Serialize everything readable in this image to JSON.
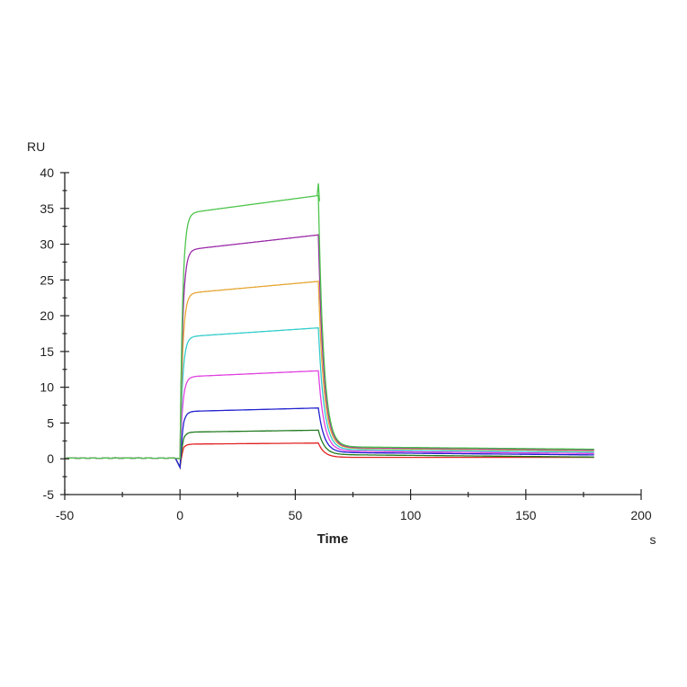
{
  "chart_data": {
    "type": "line",
    "title": "",
    "xlabel": "Time",
    "xunit": "s",
    "ylabel": "RU",
    "xlim": [
      -50,
      200
    ],
    "ylim": [
      -5,
      40
    ],
    "xticks": [
      -50,
      0,
      50,
      100,
      150,
      200
    ],
    "yticks": [
      -5,
      0,
      5,
      10,
      15,
      20,
      25,
      30,
      35,
      40
    ],
    "grid": false,
    "legend": "none",
    "association_start_s": 0,
    "dissociation_start_s": 60,
    "end_s": 180,
    "series": [
      {
        "name": "curve-1",
        "color": "#4cc44c",
        "plateau": 36.8,
        "end": 1.7
      },
      {
        "name": "curve-2",
        "color": "#9b2aa8",
        "plateau": 31.3,
        "end": 1.6
      },
      {
        "name": "curve-3",
        "color": "#e6a532",
        "plateau": 24.8,
        "end": 1.5
      },
      {
        "name": "curve-4",
        "color": "#33cccc",
        "plateau": 18.3,
        "end": 1.3
      },
      {
        "name": "curve-5",
        "color": "#e040e0",
        "plateau": 12.3,
        "end": 1.1
      },
      {
        "name": "curve-6",
        "color": "#2020d0",
        "plateau": 7.1,
        "end": 0.9
      },
      {
        "name": "curve-7",
        "color": "#1f7a1f",
        "plateau": 4.0,
        "end": 0.6
      },
      {
        "name": "curve-8",
        "color": "#e02020",
        "plateau": 2.2,
        "end": 0.2
      }
    ]
  },
  "labels": {
    "y_axis_title": "RU",
    "x_axis_title": "Time",
    "x_unit": "s",
    "xticks": [
      "-50",
      "0",
      "50",
      "100",
      "150",
      "200"
    ],
    "yticks": [
      "40",
      "35",
      "30",
      "25",
      "20",
      "15",
      "10",
      "5",
      "0",
      "-5"
    ]
  }
}
